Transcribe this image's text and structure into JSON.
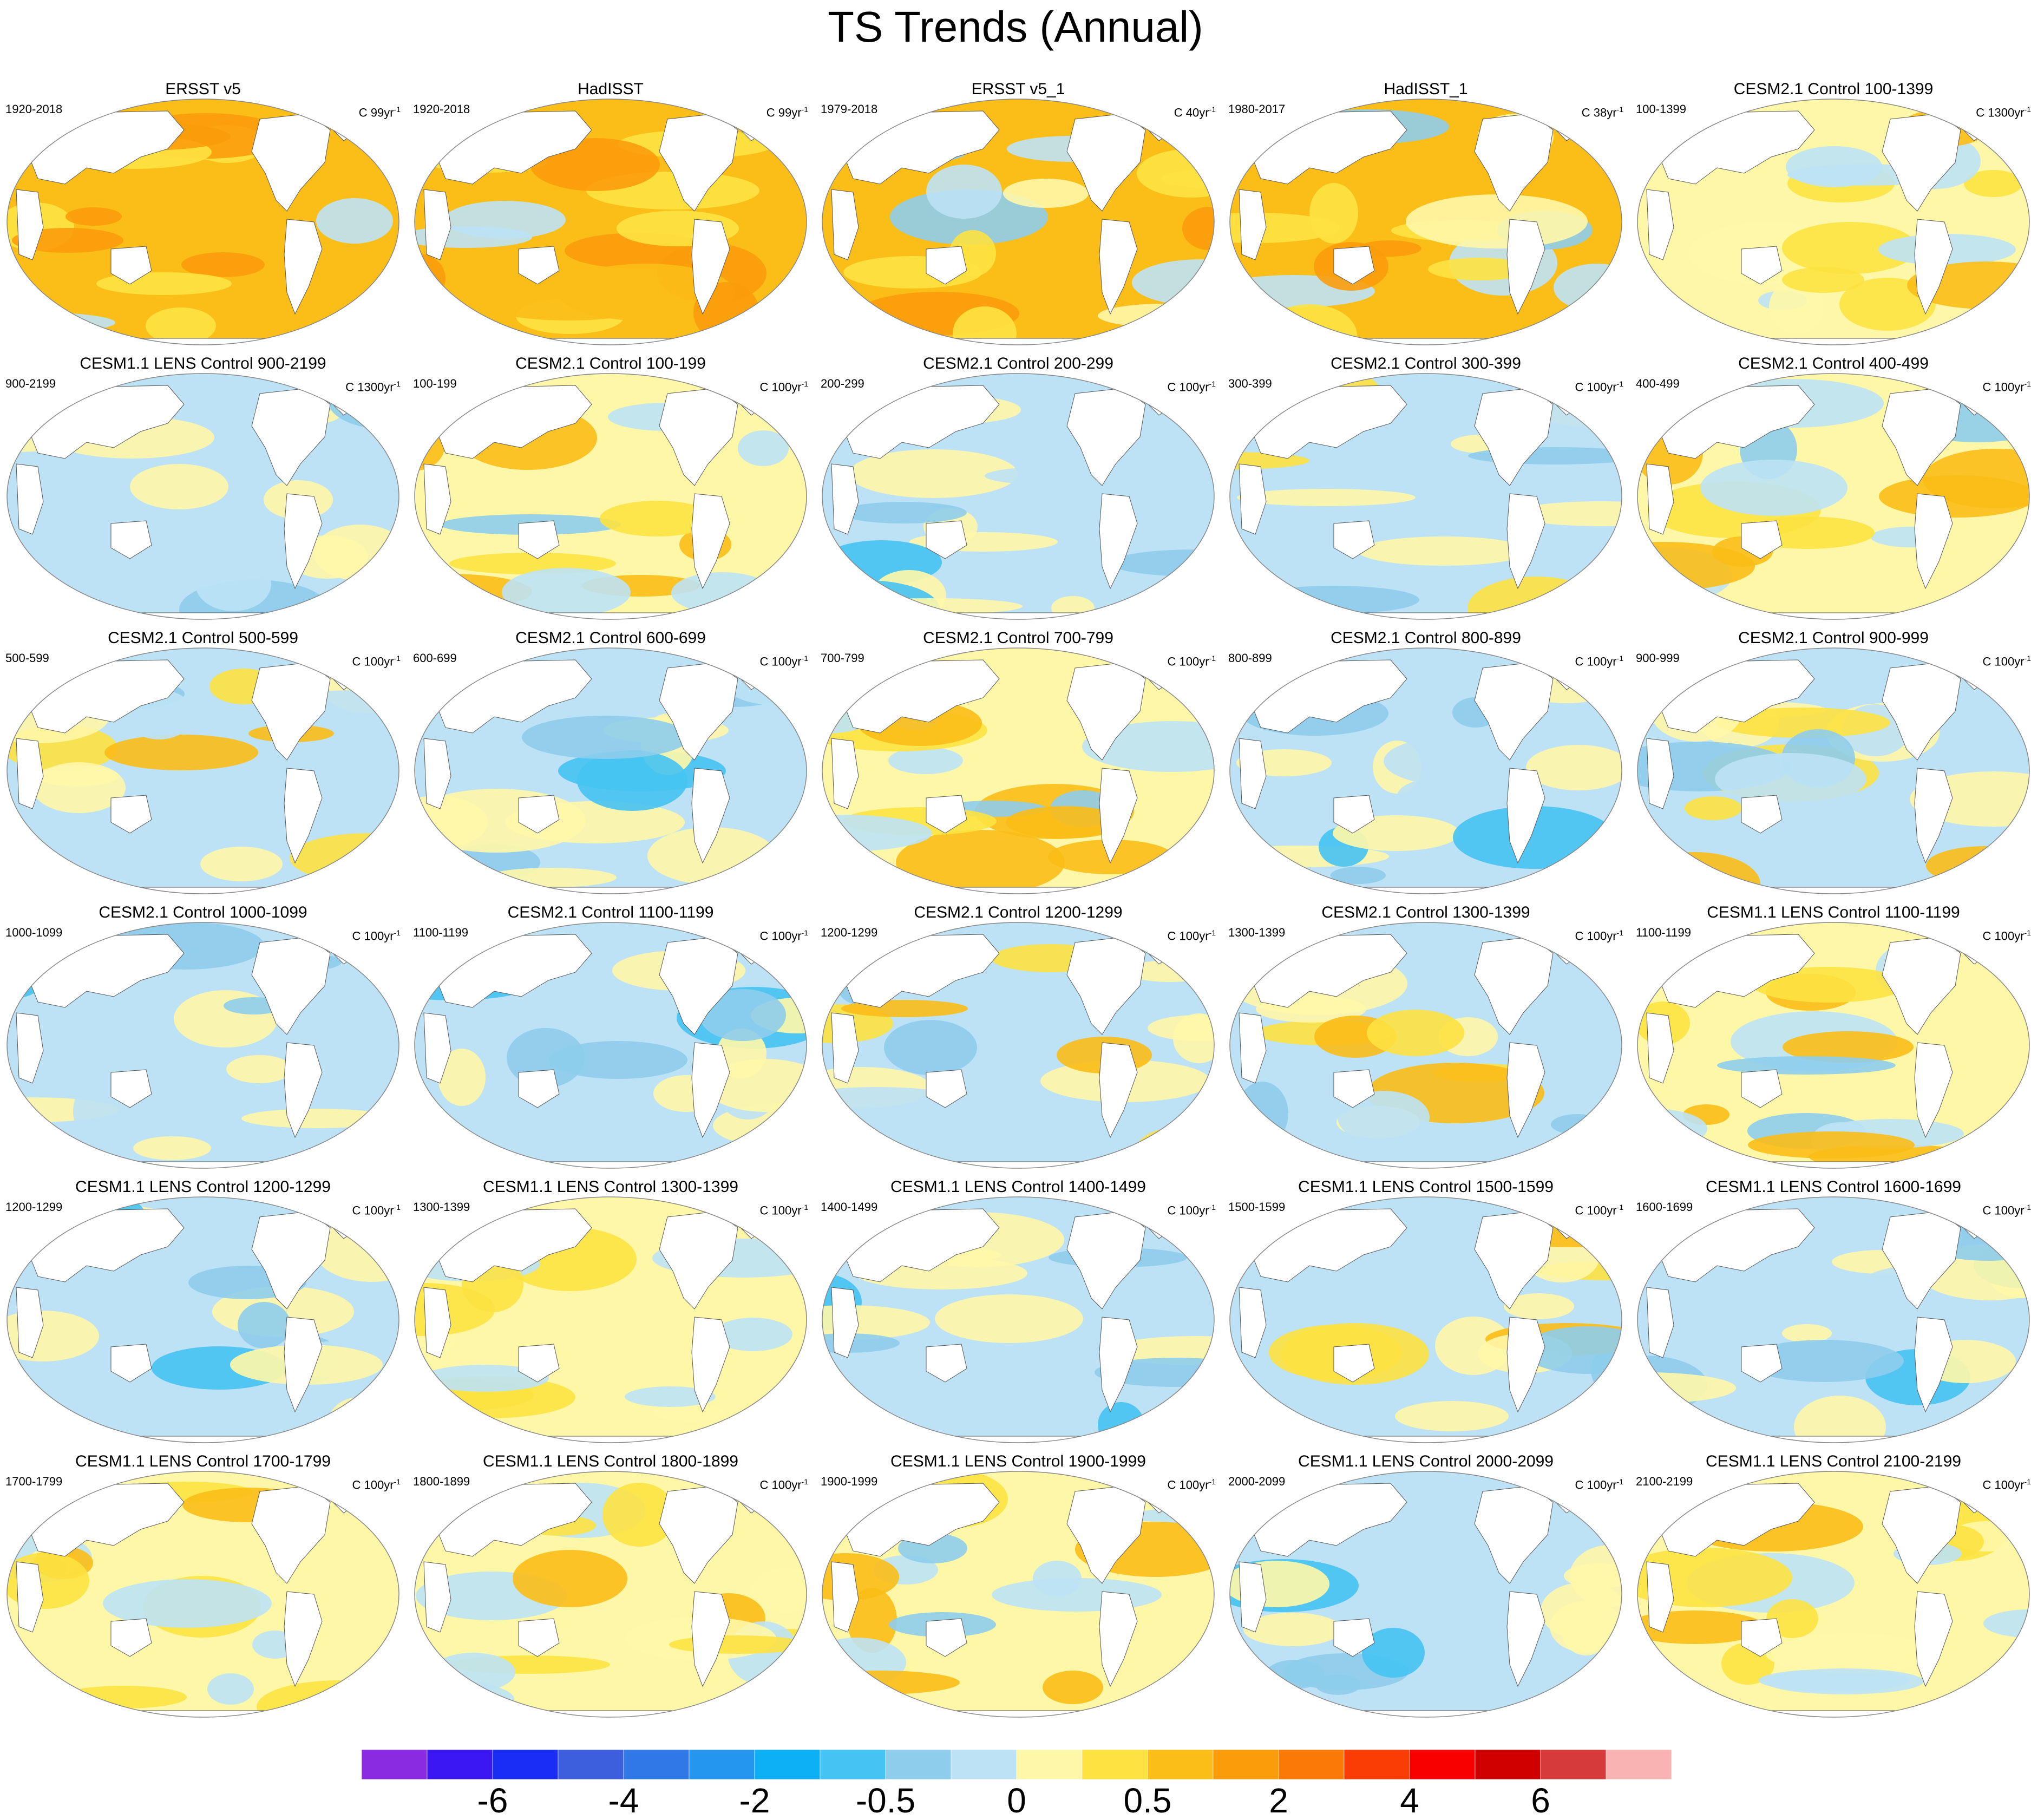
{
  "title": "TS Trends (Annual)",
  "panel_units": "C",
  "panels": [
    {
      "title": "ERSST v5",
      "period": "1920-2018",
      "per": "99yr",
      "exp": "-1",
      "pattern": "warm"
    },
    {
      "title": "HadISST",
      "period": "1920-2018",
      "per": "99yr",
      "exp": "-1",
      "pattern": "warm"
    },
    {
      "title": "ERSST v5_1",
      "period": "1979-2018",
      "per": "40yr",
      "exp": "-1",
      "pattern": "warm-mixed"
    },
    {
      "title": "HadISST_1",
      "period": "1980-2017",
      "per": "38yr",
      "exp": "-1",
      "pattern": "warm-mixed"
    },
    {
      "title": "CESM2.1 Control 100-1399",
      "period": "100-1399",
      "per": "1300yr",
      "exp": "-1",
      "pattern": "weak-warm"
    },
    {
      "title": "CESM1.1 LENS Control 900-2199",
      "period": "900-2199",
      "per": "1300yr",
      "exp": "-1",
      "pattern": "weak"
    },
    {
      "title": "CESM2.1 Control 100-199",
      "period": "100-199",
      "per": "100yr",
      "exp": "-1",
      "pattern": "pac-warm"
    },
    {
      "title": "CESM2.1 Control 200-299",
      "period": "200-299",
      "per": "100yr",
      "exp": "-1",
      "pattern": "cool"
    },
    {
      "title": "CESM2.1 Control 300-399",
      "period": "300-399",
      "per": "100yr",
      "exp": "-1",
      "pattern": "mixed"
    },
    {
      "title": "CESM2.1 Control 400-499",
      "period": "400-499",
      "per": "100yr",
      "exp": "-1",
      "pattern": "pac-warm"
    },
    {
      "title": "CESM2.1 Control 500-599",
      "period": "500-599",
      "per": "100yr",
      "exp": "-1",
      "pattern": "mixed"
    },
    {
      "title": "CESM2.1 Control 600-699",
      "period": "600-699",
      "per": "100yr",
      "exp": "-1",
      "pattern": "cool"
    },
    {
      "title": "CESM2.1 Control 700-799",
      "period": "700-799",
      "per": "100yr",
      "exp": "-1",
      "pattern": "pac-warm"
    },
    {
      "title": "CESM2.1 Control 800-899",
      "period": "800-899",
      "per": "100yr",
      "exp": "-1",
      "pattern": "cool"
    },
    {
      "title": "CESM2.1 Control 900-999",
      "period": "900-999",
      "per": "100yr",
      "exp": "-1",
      "pattern": "mixed"
    },
    {
      "title": "CESM2.1 Control 1000-1099",
      "period": "1000-1099",
      "per": "100yr",
      "exp": "-1",
      "pattern": "cool"
    },
    {
      "title": "CESM2.1 Control 1100-1199",
      "period": "1100-1199",
      "per": "100yr",
      "exp": "-1",
      "pattern": "cool"
    },
    {
      "title": "CESM2.1 Control 1200-1299",
      "period": "1200-1299",
      "per": "100yr",
      "exp": "-1",
      "pattern": "mixed"
    },
    {
      "title": "CESM2.1 Control 1300-1399",
      "period": "1300-1399",
      "per": "100yr",
      "exp": "-1",
      "pattern": "mixed"
    },
    {
      "title": "CESM1.1 LENS Control 1100-1199",
      "period": "1100-1199",
      "per": "100yr",
      "exp": "-1",
      "pattern": "pac-warm"
    },
    {
      "title": "CESM1.1 LENS Control 1200-1299",
      "period": "1200-1299",
      "per": "100yr",
      "exp": "-1",
      "pattern": "cool"
    },
    {
      "title": "CESM1.1 LENS Control 1300-1399",
      "period": "1300-1399",
      "per": "100yr",
      "exp": "-1",
      "pattern": "weak-warm"
    },
    {
      "title": "CESM1.1 LENS Control 1400-1499",
      "period": "1400-1499",
      "per": "100yr",
      "exp": "-1",
      "pattern": "cool"
    },
    {
      "title": "CESM1.1 LENS Control 1500-1599",
      "period": "1500-1599",
      "per": "100yr",
      "exp": "-1",
      "pattern": "mixed"
    },
    {
      "title": "CESM1.1 LENS Control 1600-1699",
      "period": "1600-1699",
      "per": "100yr",
      "exp": "-1",
      "pattern": "cool"
    },
    {
      "title": "CESM1.1 LENS Control 1700-1799",
      "period": "1700-1799",
      "per": "100yr",
      "exp": "-1",
      "pattern": "weak-warm"
    },
    {
      "title": "CESM1.1 LENS Control 1800-1899",
      "period": "1800-1899",
      "per": "100yr",
      "exp": "-1",
      "pattern": "weak-warm"
    },
    {
      "title": "CESM1.1 LENS Control 1900-1999",
      "period": "1900-1999",
      "per": "100yr",
      "exp": "-1",
      "pattern": "pac-warm"
    },
    {
      "title": "CESM1.1 LENS Control 2000-2099",
      "period": "2000-2099",
      "per": "100yr",
      "exp": "-1",
      "pattern": "cool"
    },
    {
      "title": "CESM1.1 LENS Control 2100-2199",
      "period": "2100-2199",
      "per": "100yr",
      "exp": "-1",
      "pattern": "weak-warm"
    }
  ],
  "colorbar": {
    "colors": [
      "#8a2be2",
      "#3b17f2",
      "#1a2df5",
      "#3d5edd",
      "#2f78e6",
      "#2596ef",
      "#0db0f5",
      "#45c3f2",
      "#8ecdec",
      "#bde2f5",
      "#fff7a8",
      "#fde241",
      "#fbbd17",
      "#fb9c0b",
      "#fb7a07",
      "#f93d05",
      "#f90000",
      "#cf0000",
      "#d63a3a",
      "#fab3b3"
    ],
    "labels": [
      {
        "text": "-6",
        "boundary": 2
      },
      {
        "text": "-4",
        "boundary": 4
      },
      {
        "text": "-2",
        "boundary": 6
      },
      {
        "text": "-0.5",
        "boundary": 8
      },
      {
        "text": "0",
        "boundary": 10
      },
      {
        "text": "0.5",
        "boundary": 12
      },
      {
        "text": "2",
        "boundary": 14
      },
      {
        "text": "4",
        "boundary": 16
      },
      {
        "text": "6",
        "boundary": 18
      }
    ]
  }
}
